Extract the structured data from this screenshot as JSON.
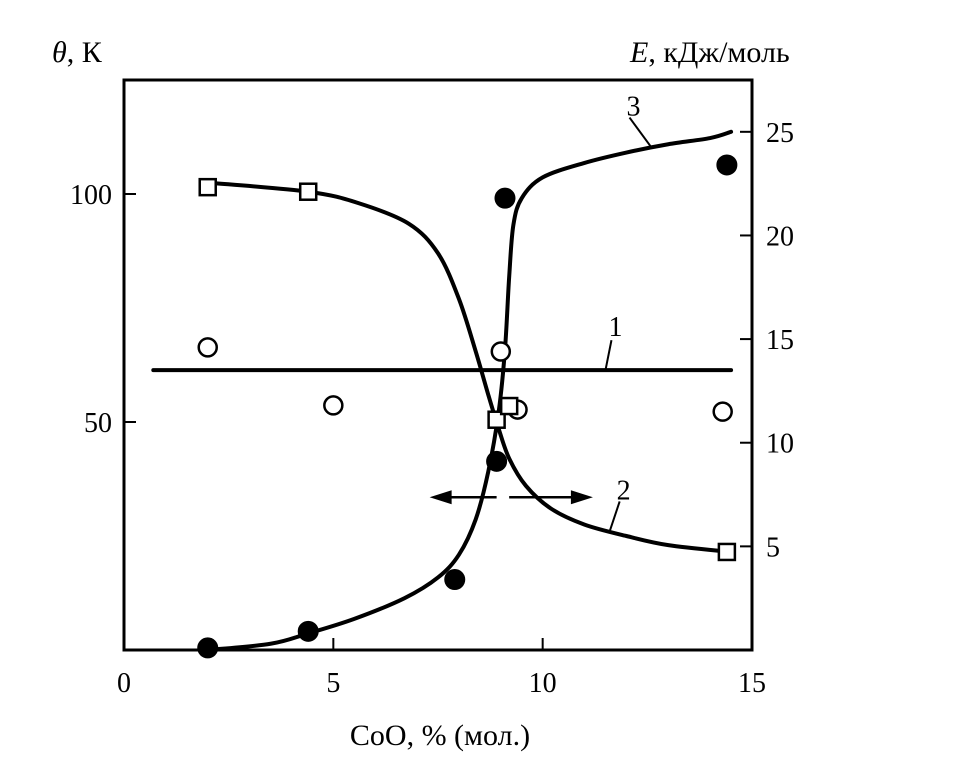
{
  "chart_data": {
    "type": "scatter",
    "xlabel": "CoO, % (мол.)",
    "ylabel_left_symbol": "θ",
    "ylabel_left_unit": ", К",
    "ylabel_right_symbol": "E",
    "ylabel_right_unit": ", кДж/моль",
    "xlim": [
      0,
      15
    ],
    "ylim_left": [
      0,
      125
    ],
    "ylim_right": [
      0,
      27.5
    ],
    "x_ticks": [
      0,
      5,
      10,
      15
    ],
    "x_tick_labels": [
      "0",
      "5",
      "10",
      "15"
    ],
    "y_left_ticks": [
      50,
      100
    ],
    "y_left_tick_labels": [
      "50",
      "100"
    ],
    "y_right_ticks": [
      5,
      10,
      15,
      20,
      25
    ],
    "y_right_tick_labels": [
      "5",
      "10",
      "15",
      "20",
      "25"
    ],
    "grid": false,
    "series": [
      {
        "name": "1",
        "marker": "open-circle",
        "axis": "right",
        "points": [
          [
            2.0,
            14.6
          ],
          [
            5.0,
            11.8
          ],
          [
            9.0,
            14.4
          ],
          [
            9.4,
            11.6
          ],
          [
            14.3,
            11.5
          ]
        ],
        "fit": [
          [
            0.7,
            13.5
          ],
          [
            14.5,
            13.5
          ]
        ]
      },
      {
        "name": "2",
        "marker": "open-square",
        "axis": "left",
        "points": [
          [
            2.0,
            101.5
          ],
          [
            4.4,
            100.5
          ],
          [
            8.9,
            50.5
          ],
          [
            9.2,
            53.5
          ],
          [
            14.4,
            21.5
          ]
        ],
        "fit": [
          [
            2.0,
            102.5
          ],
          [
            4.4,
            100.5
          ],
          [
            5.6,
            98.0
          ],
          [
            6.8,
            93.5
          ],
          [
            7.5,
            87.0
          ],
          [
            8.0,
            77.0
          ],
          [
            8.4,
            65.5
          ],
          [
            8.7,
            56.0
          ],
          [
            8.95,
            48.5
          ],
          [
            9.2,
            42.0
          ],
          [
            9.6,
            36.0
          ],
          [
            10.2,
            31.0
          ],
          [
            11.0,
            27.5
          ],
          [
            12.0,
            25.0
          ],
          [
            13.0,
            23.0
          ],
          [
            14.5,
            21.5
          ]
        ]
      },
      {
        "name": "3",
        "marker": "filled-circle",
        "axis": "right",
        "points": [
          [
            2.0,
            0.1
          ],
          [
            4.4,
            0.9
          ],
          [
            7.9,
            3.4
          ],
          [
            8.9,
            9.1
          ],
          [
            9.1,
            21.8
          ],
          [
            14.4,
            23.4
          ]
        ],
        "fit": [
          [
            2.0,
            0.0
          ],
          [
            3.5,
            0.3
          ],
          [
            4.4,
            0.8
          ],
          [
            5.5,
            1.5
          ],
          [
            6.7,
            2.5
          ],
          [
            7.5,
            3.5
          ],
          [
            8.0,
            4.6
          ],
          [
            8.4,
            6.3
          ],
          [
            8.7,
            8.6
          ],
          [
            8.95,
            11.5
          ],
          [
            9.1,
            14.5
          ],
          [
            9.2,
            18.0
          ],
          [
            9.3,
            20.5
          ],
          [
            9.5,
            21.8
          ],
          [
            10.0,
            22.8
          ],
          [
            11.0,
            23.5
          ],
          [
            12.0,
            24.0
          ],
          [
            13.0,
            24.4
          ],
          [
            14.0,
            24.7
          ],
          [
            14.5,
            25.0
          ]
        ]
      }
    ],
    "arrows": [
      {
        "from": 8.9,
        "to": 7.3,
        "y_left": 33.5
      },
      {
        "from": 9.2,
        "to": 11.2,
        "y_left": 33.5
      }
    ]
  }
}
